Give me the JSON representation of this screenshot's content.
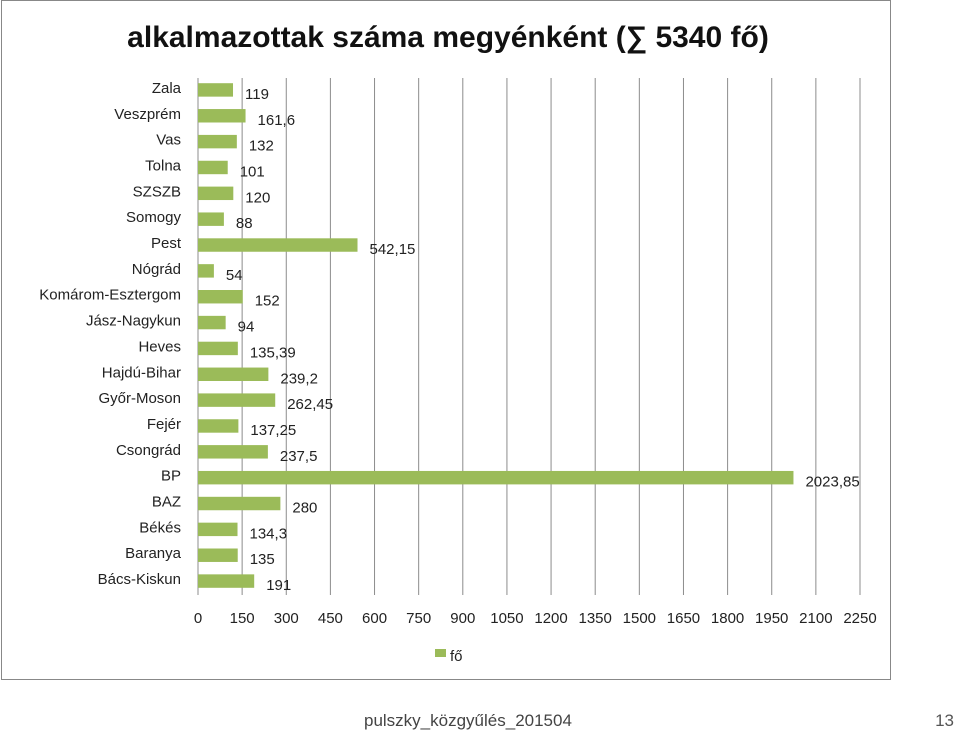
{
  "chart_data": {
    "type": "bar",
    "orientation": "horizontal",
    "title": "alkalmazottak száma megyénként (∑ 5340 fő)",
    "categories": [
      "Zala",
      "Veszprém",
      "Vas",
      "Tolna",
      "SZSZB",
      "Somogy",
      "Pest",
      "Nógrád",
      "Komárom-Esztergom",
      "Jász-Nagykun",
      "Heves",
      "Hajdú-Bihar",
      "Győr-Moson",
      "Fejér",
      "Csongrád",
      "BP",
      "BAZ",
      "Békés",
      "Baranya",
      "Bács-Kiskun"
    ],
    "values": [
      119,
      161.6,
      132,
      101,
      120,
      88,
      542.15,
      54,
      152,
      94,
      135.39,
      239.2,
      262.45,
      137.25,
      237.5,
      2023.85,
      280,
      134.3,
      135,
      191
    ],
    "value_labels": [
      "119",
      "161,6",
      "132",
      "101",
      "120",
      "88",
      "542,15",
      "54",
      "152",
      "94",
      "135,39",
      "239,2",
      "262,45",
      "137,25",
      "237,5",
      "2023,85",
      "280",
      "134,3",
      "135",
      "191"
    ],
    "series": [
      {
        "name": "fő",
        "color": "#9bbb59"
      }
    ],
    "xlim": [
      0,
      2250
    ],
    "x_ticks": [
      "0",
      "150",
      "300",
      "450",
      "600",
      "750",
      "900",
      "1050",
      "1200",
      "1350",
      "1500",
      "1650",
      "1800",
      "1950",
      "2100",
      "2250"
    ],
    "grid": "vertical",
    "legend": "bottom"
  },
  "footer": {
    "caption": "pulszky_közgyűlés_201504",
    "page_number": "13"
  }
}
